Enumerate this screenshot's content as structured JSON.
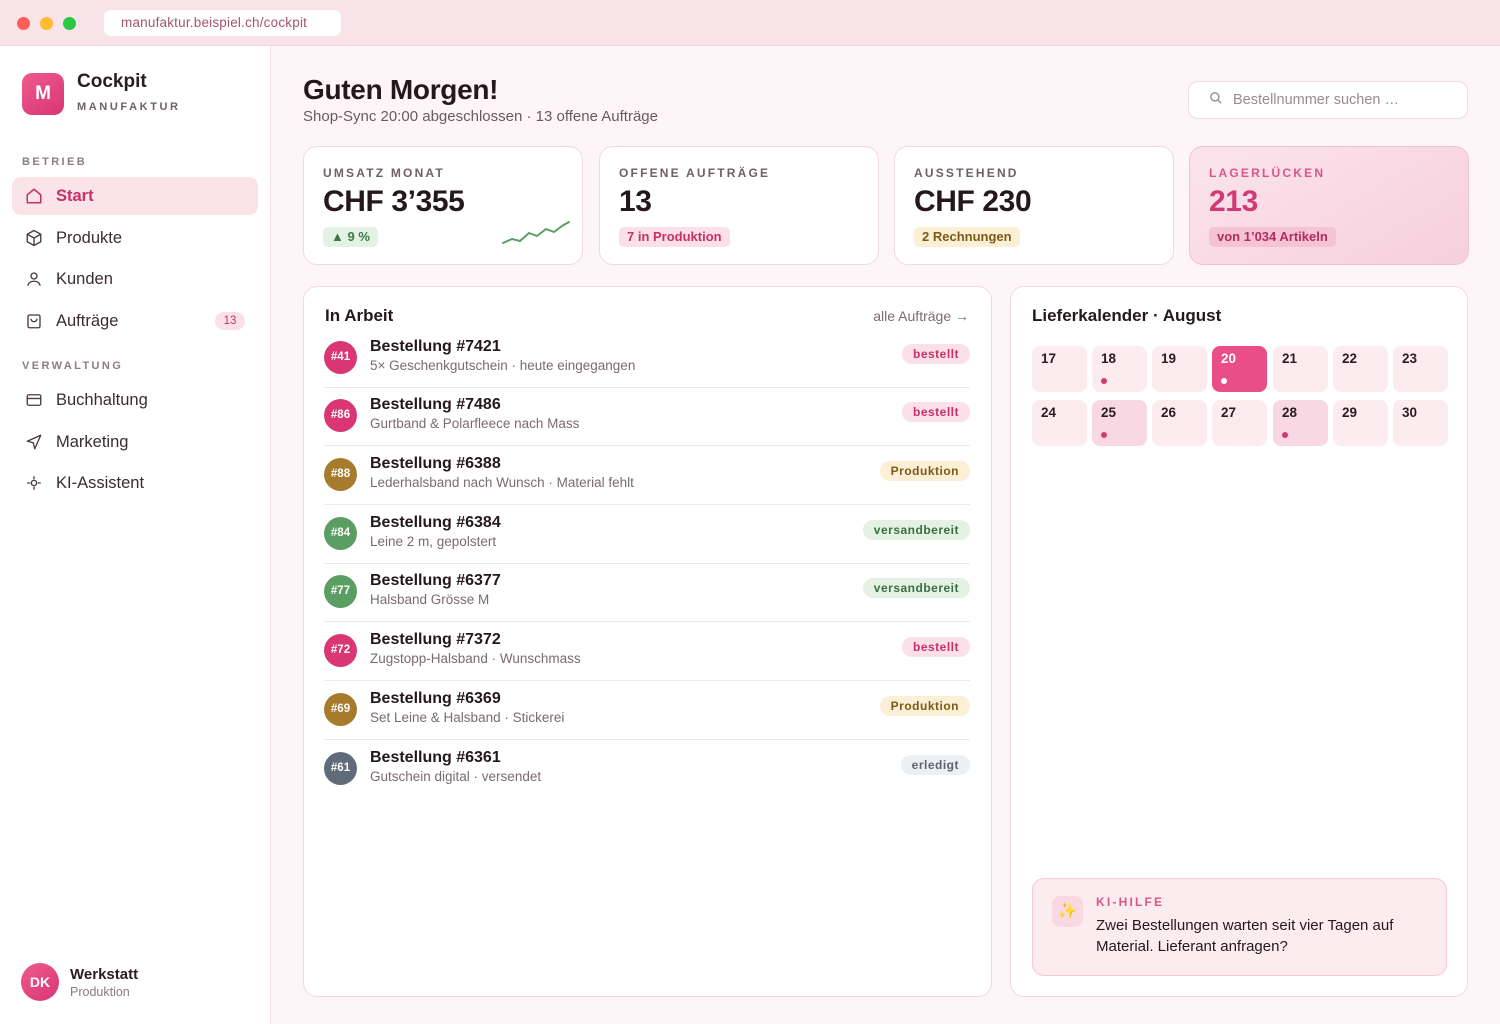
{
  "browser": {
    "url": "manufaktur.beispiel.ch/cockpit"
  },
  "brand": {
    "logo_letter": "M",
    "name": "Cockpit",
    "subtitle": "MANUFAKTUR"
  },
  "sidebar": {
    "section_operations": "BETRIEB",
    "section_admin": "VERWALTUNG",
    "items": [
      {
        "label": "Start",
        "icon": "home-icon",
        "active": true
      },
      {
        "label": "Produkte",
        "icon": "box-icon"
      },
      {
        "label": "Kunden",
        "icon": "user-icon"
      },
      {
        "label": "Aufträge",
        "icon": "shopping-bag-icon",
        "badge": "13"
      },
      {
        "label": "Buchhaltung",
        "icon": "credit-card-icon"
      },
      {
        "label": "Marketing",
        "icon": "send-icon"
      },
      {
        "label": "KI-Assistent",
        "icon": "sparkle-icon"
      }
    ]
  },
  "user": {
    "initials": "DK",
    "name": "Werkstatt",
    "role": "Produktion"
  },
  "header": {
    "greeting": "Guten Morgen!",
    "subline": "Shop-Sync 20:00 abgeschlossen · 13 offene Aufträge",
    "search_placeholder": "Bestellnummer suchen …"
  },
  "kpis": [
    {
      "label": "UMSATZ MONAT",
      "value": "CHF 3’355",
      "pill": "▲ 9 %",
      "trend_color": "#5a9e63"
    },
    {
      "label": "OFFENE AUFTRÄGE",
      "value": "13",
      "pill": "7 in Produktion"
    },
    {
      "label": "AUSSTEHEND",
      "value": "CHF 230",
      "pill": "2 Rechnungen"
    },
    {
      "label": "LAGERLÜCKEN",
      "value": "213",
      "pill": "von 1’034 Artikeln"
    }
  ],
  "orders_panel": {
    "title": "In Arbeit",
    "link": "alle Aufträge →",
    "orders": [
      {
        "badge": "#41",
        "title": "Bestellung #7421",
        "desc": "5× Geschenkgutschein · heute eingegangen",
        "status": "bestellt",
        "color": "#d93673"
      },
      {
        "badge": "#86",
        "title": "Bestellung #7486",
        "desc": "Gurtband & Polarfleece nach Mass",
        "status": "bestellt",
        "color": "#d93673"
      },
      {
        "badge": "#88",
        "title": "Bestellung #6388",
        "desc": "Lederhalsband nach Wunsch · Material fehlt",
        "status": "Produktion",
        "color": "#a67b2b"
      },
      {
        "badge": "#84",
        "title": "Bestellung #6384",
        "desc": "Leine 2 m, gepolstert",
        "status": "versandbereit",
        "color": "#5a9e63"
      },
      {
        "badge": "#77",
        "title": "Bestellung #6377",
        "desc": "Halsband Grösse M",
        "status": "versandbereit",
        "color": "#5a9e63"
      },
      {
        "badge": "#72",
        "title": "Bestellung #7372",
        "desc": "Zugstopp-Halsband · Wunschmass",
        "status": "bestellt",
        "color": "#d93673"
      },
      {
        "badge": "#69",
        "title": "Bestellung #6369",
        "desc": "Set Leine & Halsband · Stickerei",
        "status": "Produktion",
        "color": "#a67b2b"
      },
      {
        "badge": "#61",
        "title": "Bestellung #6361",
        "desc": "Gutschein digital · versendet",
        "status": "erledigt",
        "color": "#5f6b78"
      }
    ]
  },
  "calendar": {
    "title": "Lieferkalender · August",
    "days": [
      {
        "num": "17"
      },
      {
        "num": "18",
        "dot": true
      },
      {
        "num": "19"
      },
      {
        "num": "20",
        "today": true,
        "dot": true
      },
      {
        "num": "21"
      },
      {
        "num": "22"
      },
      {
        "num": "23"
      },
      {
        "num": "24"
      },
      {
        "num": "25",
        "event": true,
        "dot": true
      },
      {
        "num": "26"
      },
      {
        "num": "27"
      },
      {
        "num": "28",
        "event": true,
        "dot": true
      },
      {
        "num": "29"
      },
      {
        "num": "30"
      }
    ]
  },
  "ai_hint": {
    "label": "KI-HILFE",
    "text": "Zwei Bestellungen warten seit vier Tagen auf Material. Lieferant anfragen?",
    "icon": "sparkles-icon"
  }
}
